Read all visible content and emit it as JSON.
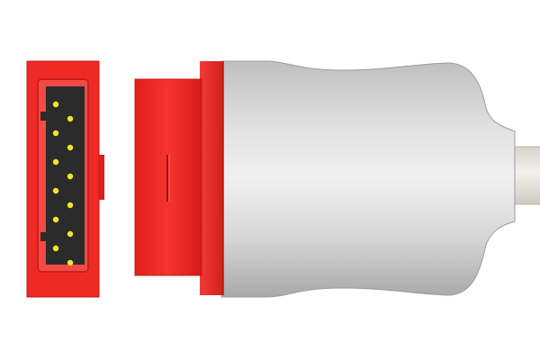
{
  "scene": {
    "subject": "red-white-medical-cable-connector",
    "background_color": "#ffffff",
    "colors": {
      "red_housing": "#ef2a26",
      "red_dark": "#c81b18",
      "pin_face": "#2b2b2b",
      "pin": "#f5e22a",
      "grey_body": "#d9d9d9",
      "cable": "#ece9e3"
    },
    "pin_count": 12
  }
}
